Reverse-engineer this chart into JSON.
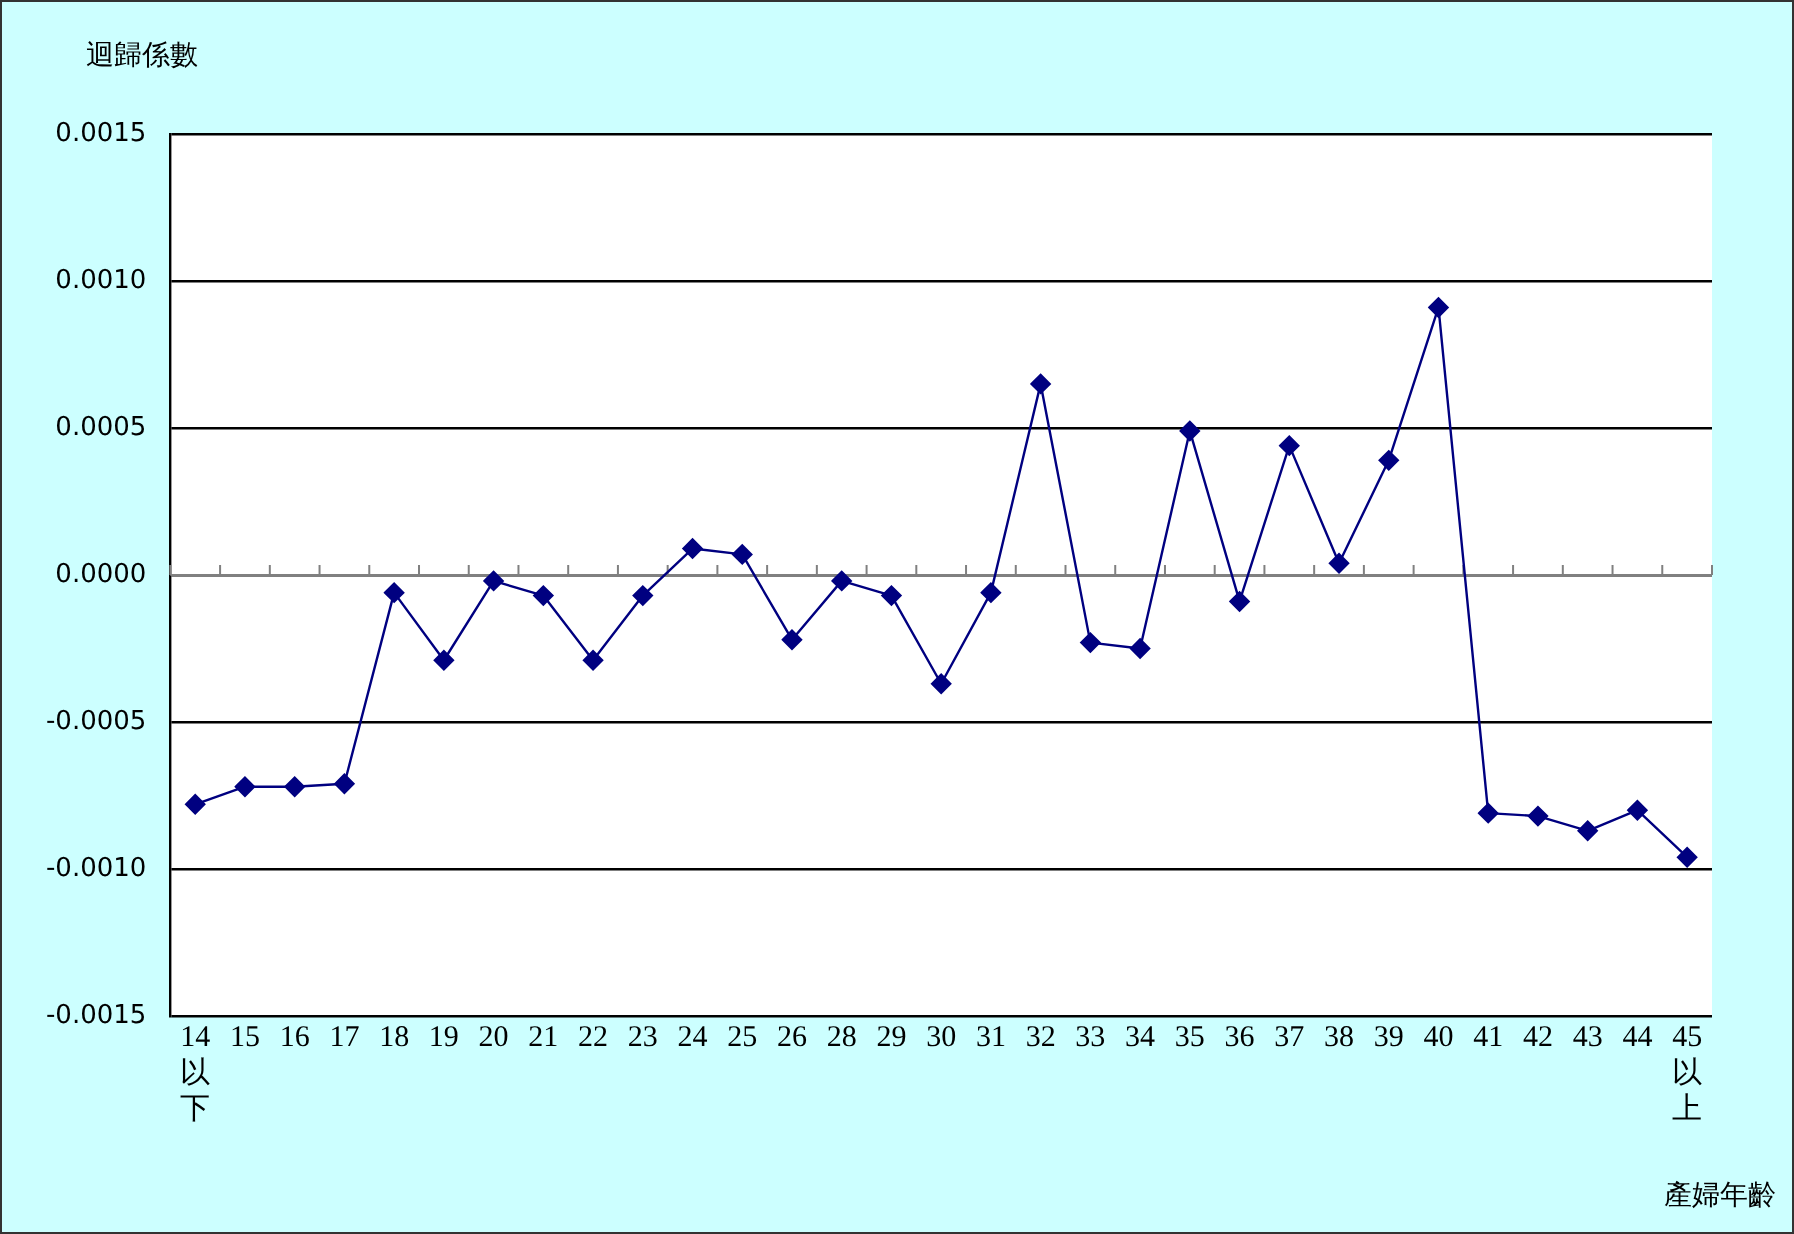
{
  "chart_data": {
    "type": "line",
    "xlabel": "產婦年齡",
    "ylabel": "迴歸係數",
    "categories": [
      "14以下",
      "15",
      "16",
      "17",
      "18",
      "19",
      "20",
      "21",
      "22",
      "23",
      "24",
      "25",
      "26",
      "28",
      "29",
      "30",
      "31",
      "32",
      "33",
      "34",
      "35",
      "36",
      "37",
      "38",
      "39",
      "40",
      "41",
      "42",
      "43",
      "44",
      "45以上"
    ],
    "series": [
      {
        "color": "#000080",
        "values": [
          -0.00078,
          -0.00072,
          -0.00072,
          -0.00071,
          -6e-05,
          -0.00029,
          -2e-05,
          -7e-05,
          -0.00029,
          -7e-05,
          9e-05,
          7e-05,
          -0.00022,
          -2e-05,
          -7e-05,
          -0.00037,
          -6e-05,
          0.00065,
          -0.00023,
          -0.00025,
          0.00049,
          -9e-05,
          0.00044,
          4e-05,
          0.00039,
          0.00091,
          -0.00081,
          -0.00082,
          -0.00087,
          -0.0008,
          -0.00096
        ]
      }
    ],
    "ylim": [
      -0.0015,
      0.0015
    ],
    "yticks": [
      -0.0015,
      {
        "value": -0.001,
        "label": "-0.0010"
      },
      -0.0005,
      {
        "value": 0,
        "label": "0.0000"
      },
      0.0005,
      {
        "value": 0.001,
        "label": "0.0010"
      },
      0.0015
    ],
    "grid": "y",
    "legend": false,
    "marker": "diamond",
    "line_style": "solid"
  }
}
